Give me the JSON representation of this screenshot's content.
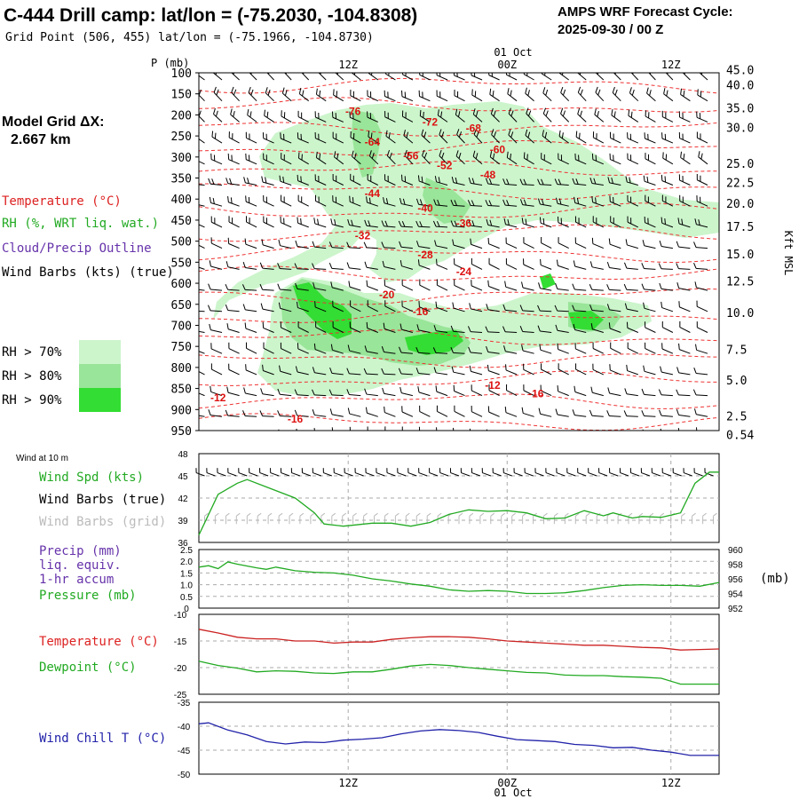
{
  "header": {
    "title": "C-444 Drill camp:  lat/lon = (-75.2030, -104.8308)",
    "subtitle": "Grid Point (506, 455) lat/lon = (-75.1966, -104.8730)",
    "cycle_label": "AMPS WRF Forecast Cycle:",
    "cycle_value": "2025-09-30 / 00  Z",
    "grid_label": "Model Grid ΔX:",
    "grid_value": "2.667 km"
  },
  "time_axis": {
    "ticks": [
      "12Z",
      "00Z",
      "12Z"
    ],
    "date_label": "01 Oct"
  },
  "legend": {
    "temperature": "Temperature (°C)",
    "rh": "RH (%, WRT liq. wat.)",
    "cloud": "Cloud/Precip Outline",
    "wind": "Wind Barbs (kts) (true)",
    "rh_levels": [
      "RH > 70%",
      "RH > 80%",
      "RH > 90%"
    ],
    "rh_colors": [
      "#ccf5cc",
      "#99e599",
      "#33dd33"
    ]
  },
  "chart_data": [
    {
      "type": "heatmap",
      "name": "sounding-time-section",
      "ylabel": "P (mb)",
      "right_label": "Kft MSL",
      "pressure_levels": [
        100,
        150,
        200,
        250,
        300,
        350,
        400,
        450,
        500,
        550,
        600,
        650,
        700,
        750,
        800,
        850,
        900,
        950
      ],
      "ylim": [
        100,
        950
      ],
      "height_ticks_kft": [
        "45.0",
        "40.0",
        "35.0",
        "30.0",
        "25.0",
        "22.5",
        "20.0",
        "17.5",
        "15.0",
        "12.5",
        "10.0",
        "7.5",
        "5.0",
        "2.5",
        "0.54"
      ],
      "height_tick_pressure": [
        93,
        128,
        183,
        230,
        315,
        360,
        410,
        465,
        530,
        595,
        670,
        757,
        830,
        915,
        960
      ],
      "temperature_contour_labels": [
        {
          "text": "-76",
          "hour": 16,
          "p": 190
        },
        {
          "text": "-72",
          "hour": 24,
          "p": 215
        },
        {
          "text": "-68",
          "hour": 28.5,
          "p": 230
        },
        {
          "text": "-64",
          "hour": 18,
          "p": 262
        },
        {
          "text": "-60",
          "hour": 31,
          "p": 280
        },
        {
          "text": "-56",
          "hour": 22,
          "p": 295
        },
        {
          "text": "-52",
          "hour": 25.5,
          "p": 318
        },
        {
          "text": "-48",
          "hour": 30,
          "p": 340
        },
        {
          "text": "-44",
          "hour": 18,
          "p": 385
        },
        {
          "text": "-40",
          "hour": 23.5,
          "p": 420
        },
        {
          "text": "-36",
          "hour": 27.5,
          "p": 455
        },
        {
          "text": "-32",
          "hour": 17,
          "p": 485
        },
        {
          "text": "-28",
          "hour": 23.5,
          "p": 530
        },
        {
          "text": "-24",
          "hour": 27.5,
          "p": 570
        },
        {
          "text": "-20",
          "hour": 19.5,
          "p": 625
        },
        {
          "text": "-16",
          "hour": 23,
          "p": 665
        },
        {
          "text": "-12",
          "hour": 30.5,
          "p": 840
        },
        {
          "text": "-16",
          "hour": 35,
          "p": 860
        },
        {
          "text": "-12",
          "hour": 2,
          "p": 870
        },
        {
          "text": "-16",
          "hour": 10,
          "p": 920
        }
      ]
    },
    {
      "type": "line",
      "name": "wind-speed",
      "title": "Wind at 10 m",
      "labels": [
        "Wind Spd (kts)",
        "Wind Barbs (true)",
        "Wind Barbs (grid)"
      ],
      "ylim": [
        36,
        48
      ],
      "yticks": [
        36,
        39,
        42,
        45,
        48
      ],
      "series": [
        {
          "name": "Wind Spd (kts)",
          "color": "#22aa22",
          "x": [
            0,
            2,
            4,
            5,
            7,
            10,
            12,
            13,
            15,
            18,
            20,
            22,
            24,
            26,
            28,
            30,
            32,
            34,
            36,
            38,
            40,
            42,
            43,
            45,
            46,
            48,
            50,
            51.5,
            53,
            54
          ],
          "y": [
            37,
            42.5,
            44,
            44.5,
            43.5,
            42,
            40,
            38.5,
            38.2,
            38.6,
            38.6,
            38.2,
            38.7,
            39.8,
            40.4,
            40.2,
            40.3,
            40.0,
            39.2,
            39.3,
            40.3,
            39.6,
            40.0,
            39.3,
            39.5,
            39.4,
            40.0,
            44.0,
            45.5,
            45.5
          ]
        }
      ]
    },
    {
      "type": "line",
      "name": "precip-pressure",
      "labels": [
        "Precip (mm)",
        "liq. equiv.",
        "1-hr accum",
        "Pressure (mb)"
      ],
      "ylim_left": [
        0,
        2.5
      ],
      "yticks_left": [
        "0",
        "0.5",
        "1.0",
        "1.5",
        "2.0",
        "2.5"
      ],
      "ylim_right": [
        952,
        960
      ],
      "yticks_right": [
        "952",
        "954",
        "956",
        "958",
        "960"
      ],
      "right_unit": "(mb)",
      "series": [
        {
          "name": "Pressure (mb)",
          "color": "#22aa22",
          "x": [
            0,
            1,
            2,
            3,
            4,
            6,
            7,
            8,
            10,
            12,
            14,
            16,
            18,
            20,
            22,
            24,
            26,
            28,
            30,
            32,
            34,
            36,
            38,
            40,
            42,
            44,
            46,
            48,
            50,
            52,
            54
          ],
          "y": [
            957.6,
            957.8,
            957.4,
            958.3,
            958.0,
            957.5,
            957.3,
            957.6,
            957.1,
            956.9,
            956.8,
            956.5,
            956.0,
            955.7,
            955.3,
            955.0,
            954.5,
            954.3,
            954.4,
            954.3,
            954.0,
            954.0,
            954.1,
            954.4,
            954.8,
            955.1,
            955.2,
            955.1,
            955.1,
            955.0,
            955.5
          ]
        }
      ]
    },
    {
      "type": "line",
      "name": "temperature-dewpoint",
      "labels": [
        "Temperature (°C)",
        "Dewpoint (°C)"
      ],
      "ylim": [
        -25,
        -10
      ],
      "yticks": [
        -25,
        -20,
        -15,
        -10
      ],
      "series": [
        {
          "name": "Temperature (°C)",
          "color": "#cc2222",
          "x": [
            0,
            2,
            4,
            6,
            8,
            10,
            12,
            14,
            16,
            18,
            20,
            22,
            24,
            26,
            28,
            30,
            32,
            34,
            36,
            38,
            40,
            42,
            44,
            46,
            48,
            50,
            52,
            54
          ],
          "y": [
            -12.8,
            -13.5,
            -14.3,
            -14.6,
            -14.6,
            -15.0,
            -15.0,
            -15.4,
            -15.2,
            -15.2,
            -14.7,
            -14.4,
            -14.2,
            -14.2,
            -14.3,
            -14.6,
            -15.0,
            -15.2,
            -15.4,
            -15.6,
            -15.8,
            -15.8,
            -16.0,
            -16.2,
            -16.3,
            -16.7,
            -16.6,
            -16.5
          ]
        },
        {
          "name": "Dewpoint (°C)",
          "color": "#22aa22",
          "x": [
            0,
            2,
            4,
            6,
            8,
            10,
            12,
            14,
            16,
            18,
            20,
            22,
            24,
            26,
            28,
            30,
            32,
            34,
            36,
            38,
            40,
            42,
            44,
            46,
            48,
            50,
            52,
            54
          ],
          "y": [
            -18.8,
            -19.6,
            -20.1,
            -20.8,
            -20.6,
            -20.7,
            -21.0,
            -21.1,
            -20.8,
            -20.8,
            -20.3,
            -19.7,
            -19.4,
            -19.6,
            -20.0,
            -20.3,
            -20.6,
            -20.9,
            -21.0,
            -21.4,
            -21.5,
            -21.5,
            -21.7,
            -21.8,
            -22.0,
            -23.1,
            -23.1,
            -23.1
          ]
        }
      ]
    },
    {
      "type": "line",
      "name": "wind-chill",
      "labels": [
        "Wind Chill T (°C)"
      ],
      "ylim": [
        -50,
        -35
      ],
      "yticks": [
        -50,
        -45,
        -40,
        -35
      ],
      "series": [
        {
          "name": "Wind Chill T (°C)",
          "color": "#2222aa",
          "x": [
            0,
            1,
            3,
            5,
            7,
            9,
            11,
            13,
            15,
            17,
            19,
            21,
            23,
            25,
            27,
            29,
            31,
            33,
            35,
            37,
            39,
            41,
            43,
            45,
            47,
            49,
            51,
            54
          ],
          "y": [
            -39.5,
            -39.3,
            -40.8,
            -41.8,
            -43.2,
            -43.7,
            -43.3,
            -43.4,
            -42.9,
            -42.7,
            -42.4,
            -41.6,
            -41.0,
            -40.7,
            -40.9,
            -41.3,
            -42.1,
            -42.8,
            -43.0,
            -43.2,
            -43.8,
            -44.0,
            -44.5,
            -44.4,
            -45.0,
            -45.4,
            -46.1,
            -46.1
          ]
        }
      ]
    }
  ]
}
